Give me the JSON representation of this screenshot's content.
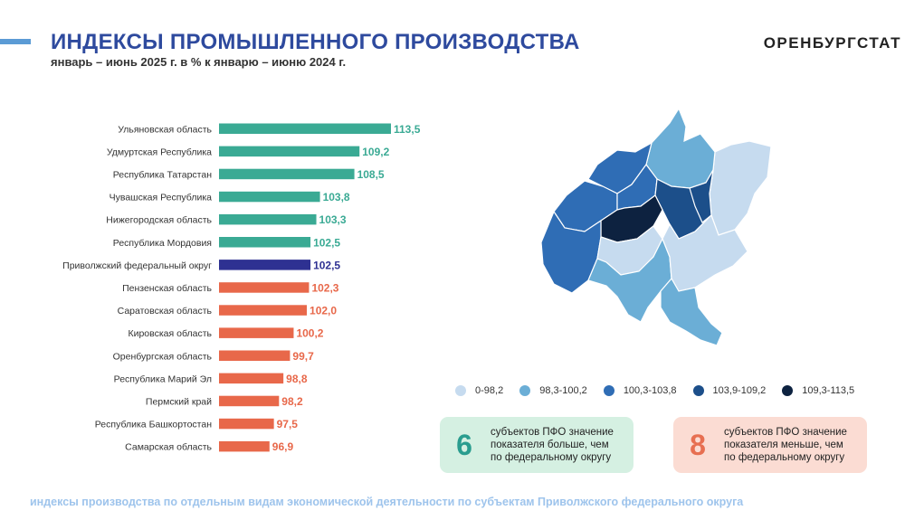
{
  "header": {
    "title": "ИНДЕКСЫ ПРОМЫШЛЕННОГО ПРОИЗВОДСТВА",
    "subtitle": "январь – июнь 2025 г. в % к январю – июню 2024 г.",
    "brand": "ОРЕНБУРГСТАТ"
  },
  "chart_data": {
    "type": "bar",
    "orientation": "horizontal",
    "categories": [
      "Ульяновская область",
      "Удмуртская Республика",
      "Республика Татарстан",
      "Чувашская Республика",
      "Нижегородская область",
      "Республика Мордовия",
      "Приволжский федеральный округ",
      "Пензенская область",
      "Саратовская область",
      "Кировская область",
      "Оренбургская область",
      "Республика Марий Эл",
      "Пермский край",
      "Республика Башкортостан",
      "Самарская область"
    ],
    "values": [
      113.5,
      109.2,
      108.5,
      103.8,
      103.3,
      102.5,
      102.5,
      102.3,
      102.0,
      100.2,
      99.7,
      98.8,
      98.2,
      97.5,
      96.9
    ],
    "labels": [
      "113,5",
      "109,2",
      "108,5",
      "103,8",
      "103,3",
      "102,5",
      "102,5",
      "102,3",
      "102,0",
      "100,2",
      "99,7",
      "98,8",
      "98,2",
      "97,5",
      "96,9"
    ],
    "groups": [
      "above",
      "above",
      "above",
      "above",
      "above",
      "above",
      "district",
      "below",
      "below",
      "below",
      "below",
      "below",
      "below",
      "below",
      "below"
    ],
    "colors": {
      "above": "#3aaa94",
      "district": "#2e3192",
      "below": "#e8684a"
    },
    "title": "",
    "xlabel": "",
    "ylabel": ""
  },
  "map_legend": [
    {
      "label": "0-98,2",
      "color": "#c6dbef"
    },
    {
      "label": "98,3-100,2",
      "color": "#6baed6"
    },
    {
      "label": "100,3-103,8",
      "color": "#2f6db5"
    },
    {
      "label": "103,9-109,2",
      "color": "#1c4f8a"
    },
    {
      "label": "109,3-113,5",
      "color": "#0d2240"
    }
  ],
  "info": {
    "above": {
      "count": "6",
      "text": [
        "субъектов ПФО значение",
        "показателя больше, чем",
        "по федеральному округу"
      ]
    },
    "below": {
      "count": "8",
      "text": [
        "субъектов ПФО значение",
        "показателя меньше, чем",
        "по федеральному округу"
      ]
    }
  },
  "footer": {
    "text": "индексы производства по отдельным видам экономической деятельности по субъектам Приволжского федерального округа"
  }
}
